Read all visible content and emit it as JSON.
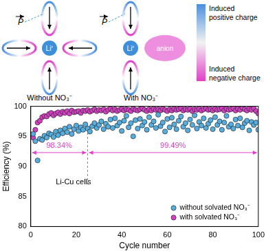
{
  "diagram": {
    "dipole": "P",
    "cation": "Li⁺",
    "anion": "anion",
    "left_caption": "Without NO₃⁻",
    "right_caption": "With NO₃⁻",
    "colorbar_top": "Induced positive charge",
    "colorbar_bottom": "Induced negative charge"
  },
  "chart_data": {
    "type": "scatter",
    "x_label": "Cycle number",
    "y_label": "Efficiency (%)",
    "x": [
      1,
      2,
      3,
      4,
      5,
      6,
      7,
      8,
      9,
      10,
      11,
      12,
      13,
      14,
      15,
      16,
      17,
      18,
      19,
      20,
      21,
      22,
      23,
      24,
      25,
      26,
      27,
      28,
      29,
      30,
      31,
      32,
      33,
      34,
      35,
      36,
      37,
      38,
      39,
      40,
      41,
      42,
      43,
      44,
      45,
      46,
      47,
      48,
      49,
      50,
      51,
      52,
      53,
      54,
      55,
      56,
      57,
      58,
      59,
      60,
      61,
      62,
      63,
      64,
      65,
      66,
      67,
      68,
      69,
      70,
      71,
      72,
      73,
      74,
      75,
      76,
      77,
      78,
      79,
      80,
      81,
      82,
      83,
      84,
      85,
      86,
      87,
      88,
      89,
      90,
      91,
      92,
      93,
      94,
      95,
      96,
      97,
      98,
      99,
      100
    ],
    "series": [
      {
        "name": "without solvated NO₃⁻",
        "color": "#55aee0",
        "marker": "circle",
        "values": [
          95.4,
          94.2,
          91.0,
          94.6,
          94.4,
          95.1,
          94.8,
          95.5,
          95.3,
          94.9,
          95.8,
          95.2,
          96.0,
          95.5,
          96.3,
          95.7,
          96.6,
          95.4,
          96.2,
          96.8,
          95.9,
          96.5,
          96.1,
          97.0,
          96.3,
          95.8,
          96.7,
          97.2,
          96.4,
          96.9,
          97.5,
          96.2,
          97.1,
          96.6,
          97.8,
          96.4,
          98.0,
          96.8,
          97.3,
          95.9,
          97.6,
          98.4,
          96.5,
          97.2,
          95.0,
          97.7,
          96.3,
          97.9,
          96.8,
          97.4,
          96.1,
          98.2,
          96.9,
          97.5,
          96.4,
          98.6,
          96.7,
          97.3,
          95.8,
          97.9,
          96.5,
          98.1,
          97.0,
          96.2,
          97.6,
          98.3,
          96.6,
          97.2,
          96.0,
          97.8,
          96.9,
          98.5,
          96.3,
          97.4,
          96.8,
          98.0,
          96.4,
          97.1,
          97.7,
          96.2,
          98.2,
          96.9,
          97.5,
          96.1,
          97.3,
          98.4,
          96.6,
          97.0,
          96.3,
          97.8,
          96.8,
          98.0,
          96.5,
          97.2,
          97.6,
          96.0,
          97.4,
          96.9,
          97.3,
          96.1
        ]
      },
      {
        "name": "with solvated NO₃⁻",
        "color": "#d43fc4",
        "marker": "circle",
        "values": [
          94.8,
          96.1,
          97.3,
          97.6,
          98.2,
          98.4,
          98.3,
          98.7,
          98.9,
          98.5,
          98.8,
          99.0,
          98.7,
          99.1,
          98.9,
          99.2,
          98.8,
          99.3,
          99.0,
          99.1,
          99.2,
          98.9,
          99.3,
          99.2,
          99.4,
          99.1,
          99.3,
          99.5,
          99.2,
          99.4,
          99.3,
          99.5,
          99.1,
          99.4,
          99.6,
          99.3,
          99.5,
          99.2,
          99.4,
          99.6,
          99.3,
          99.5,
          99.4,
          99.2,
          99.6,
          99.4,
          99.3,
          99.5,
          99.7,
          99.4,
          99.2,
          99.5,
          99.3,
          99.6,
          99.4,
          99.5,
          99.3,
          99.6,
          99.4,
          99.2,
          99.5,
          99.3,
          99.6,
          99.4,
          99.5,
          99.7,
          99.3,
          99.5,
          99.4,
          99.6,
          99.2,
          99.5,
          99.4,
          99.6,
          99.3,
          99.5,
          99.7,
          99.4,
          99.5,
          99.3,
          99.6,
          99.4,
          99.5,
          99.7,
          99.3,
          99.6,
          99.4,
          99.5,
          99.7,
          99.3,
          99.6,
          99.4,
          99.8,
          99.5,
          99.3,
          99.6,
          99.4,
          99.7,
          99.2,
          98.8
        ]
      }
    ],
    "xlim": [
      0,
      100
    ],
    "xticks": [
      0,
      20,
      40,
      60,
      80,
      100
    ],
    "ylim": [
      80,
      100
    ],
    "yticks": [
      80,
      85,
      90,
      95,
      100
    ],
    "grid": false,
    "legend": "lower right",
    "annotations": [
      {
        "text": "98.34%",
        "range": [
          0,
          25
        ]
      },
      {
        "text": "99.49%",
        "range": [
          25,
          100
        ]
      }
    ],
    "note": "Li-Cu cells"
  }
}
